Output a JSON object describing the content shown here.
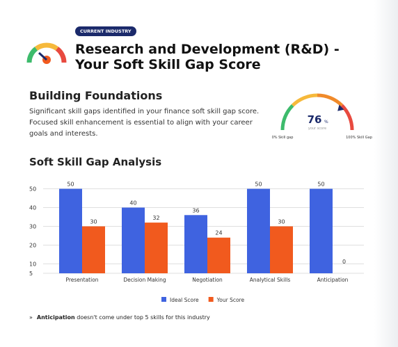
{
  "header": {
    "badge": "CURRENT INDUSTRY",
    "title": "Research and Development (R&D) - Your Soft Skill Gap Score"
  },
  "summary": {
    "heading": "Building Foundations",
    "text": "Significant skill gaps identified in your finance soft skill gap score. Focused skill enhancement is essential to align with your career goals and interests."
  },
  "gauge": {
    "value": 76,
    "unit": "%",
    "caption": "your score",
    "min_label": "0% Skill gap",
    "max_label": "100% Skill Gap",
    "range": [
      0,
      100
    ]
  },
  "section_title": "Soft Skill Gap Analysis",
  "chart_data": {
    "type": "bar",
    "categories": [
      "Presentation",
      "Decision Making",
      "Negotiation",
      "Analytical Skills",
      "Anticipation"
    ],
    "series": [
      {
        "name": "Ideal Score",
        "color": "#3f63e0",
        "values": [
          50,
          40,
          36,
          50,
          50
        ]
      },
      {
        "name": "Your Score",
        "color": "#f15a1e",
        "values": [
          30,
          32,
          24,
          30,
          0
        ]
      }
    ],
    "ylim": [
      5,
      55
    ],
    "yticks": [
      5,
      10,
      20,
      30,
      40,
      50
    ],
    "grid": true,
    "legend": "bottom"
  },
  "footnote": {
    "bold": "Anticipation",
    "text": " doesn't come under top 5 skills for this industry"
  }
}
